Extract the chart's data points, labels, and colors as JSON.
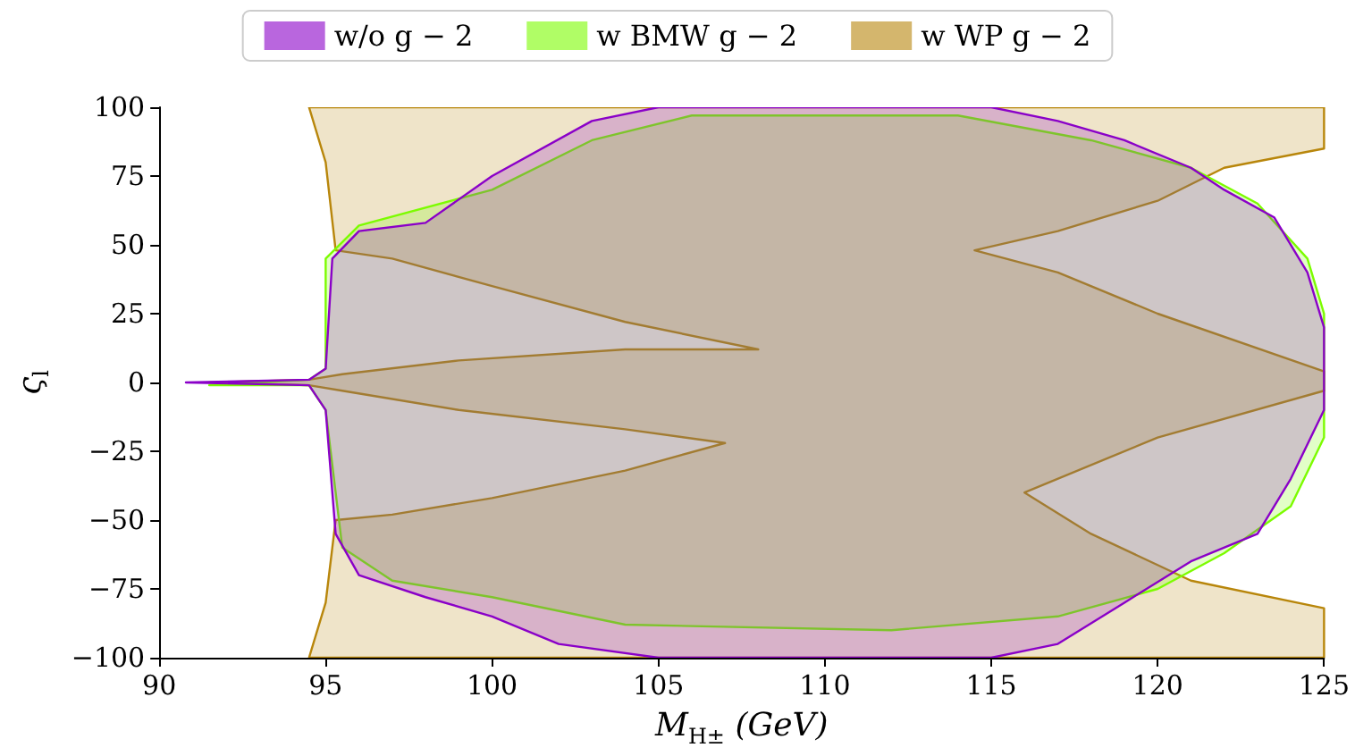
{
  "chart_data": {
    "type": "area",
    "xlabel": "M$_{H±}$ (GeV)",
    "ylabel": "ς$_{l}$",
    "xlim": [
      90,
      125
    ],
    "xticks": [
      90,
      95,
      100,
      105,
      110,
      115,
      120,
      125
    ],
    "ylim": [
      -100,
      100
    ],
    "yticks": [
      -100,
      -75,
      -50,
      -25,
      0,
      25,
      50,
      75,
      100
    ],
    "grid": false,
    "legend": "top",
    "series": [
      {
        "name": "w WP g − 2",
        "color": "#b8860b",
        "x": [
          94.5,
          125,
          125,
          122,
          120,
          117,
          114.5,
          117,
          120,
          125,
          125,
          120,
          116,
          118,
          121,
          125,
          125,
          94.5,
          95,
          95.3,
          97,
          100,
          104,
          107,
          104,
          99,
          95.5,
          94.5,
          91.5,
          94.5,
          95.5,
          99,
          104,
          108,
          104,
          100,
          97,
          95.3,
          95
        ],
        "values": [
          100,
          100,
          85,
          78,
          66,
          55,
          48,
          40,
          25,
          4,
          -3,
          -20,
          -40,
          -55,
          -72,
          -82,
          -100,
          -100,
          -80,
          -50,
          -48,
          -42,
          -32,
          -22,
          -17,
          -10,
          -3,
          -1,
          0,
          1,
          3,
          8,
          12,
          12,
          22,
          35,
          45,
          48,
          80
        ]
      },
      {
        "name": "w BMW g − 2",
        "color": "#7cfc00",
        "x": [
          91.5,
          94.5,
          95,
          95,
          96,
          100,
          103,
          106,
          114,
          118,
          121,
          123,
          124.5,
          125,
          125,
          124,
          122,
          120,
          117,
          112,
          104,
          100,
          97,
          95.5,
          95,
          94.5
        ],
        "values": [
          -1,
          1,
          5,
          45,
          57,
          70,
          88,
          97,
          97,
          88,
          78,
          65,
          45,
          25,
          -20,
          -45,
          -62,
          -75,
          -85,
          -90,
          -88,
          -78,
          -72,
          -60,
          -10,
          -1
        ]
      },
      {
        "name": "w/o g − 2",
        "color": "#8a00c8",
        "x": [
          90.8,
          94.5,
          95,
          95.2,
          96,
          98,
          100,
          103,
          105,
          115,
          117,
          119,
          121,
          122,
          123.5,
          124.5,
          125,
          125,
          124,
          123,
          121,
          119,
          117,
          115,
          105,
          102,
          100,
          98,
          96,
          95.3,
          95,
          94.5
        ],
        "values": [
          0,
          1,
          5,
          45,
          55,
          58,
          75,
          95,
          100,
          100,
          95,
          88,
          78,
          70,
          60,
          40,
          20,
          -10,
          -35,
          -55,
          -65,
          -80,
          -95,
          -100,
          -100,
          -95,
          -85,
          -78,
          -70,
          -55,
          -10,
          -1
        ]
      }
    ]
  }
}
